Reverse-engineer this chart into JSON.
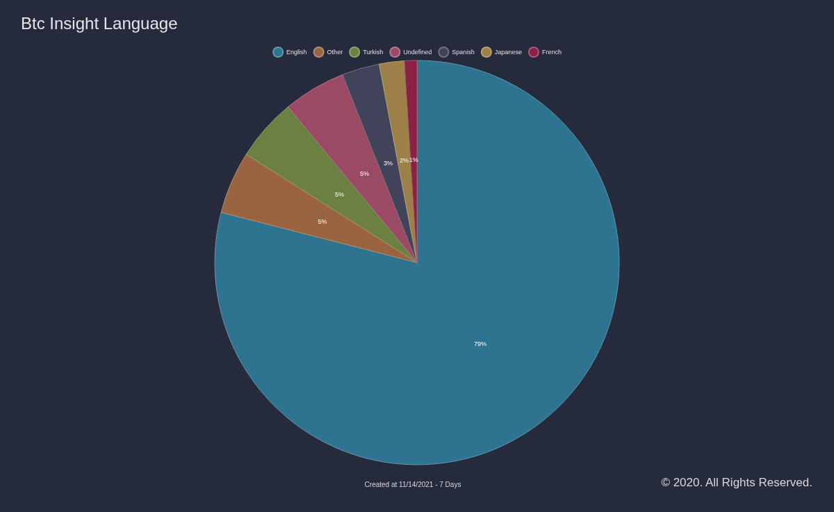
{
  "chart_data": {
    "type": "pie",
    "title": "Btc Insight Language",
    "categories": [
      "English",
      "Other",
      "Turkish",
      "Undefined",
      "Spanish",
      "Japanese",
      "French"
    ],
    "values": [
      79,
      5,
      5,
      5,
      3,
      2,
      1
    ],
    "colors": [
      "#2e7390",
      "#9a6440",
      "#6c8042",
      "#9a4a64",
      "#41435a",
      "#9c8048",
      "#8b2246"
    ],
    "value_labels": [
      "79%",
      "5%",
      "5%",
      "5%",
      "3%",
      "2%",
      "1%"
    ],
    "legend": "top",
    "annotations": [
      "Created at 11/14/2021 - 7 Days",
      "© 2020. All Rights Reserved."
    ]
  }
}
